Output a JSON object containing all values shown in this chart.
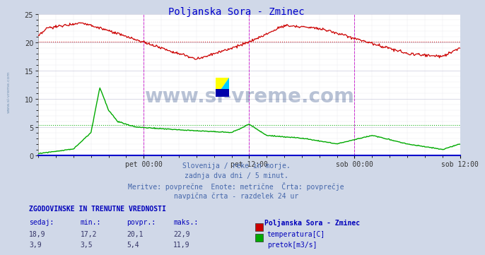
{
  "title": "Poljanska Sora - Zminec",
  "title_color": "#0000cc",
  "bg_color": "#d0d8e8",
  "plot_bg_color": "#ffffff",
  "x_labels": [
    "pet 00:00",
    "pet 12:00",
    "sob 00:00",
    "sob 12:00"
  ],
  "ylim": [
    0,
    25
  ],
  "yticks": [
    0,
    5,
    10,
    15,
    20,
    25
  ],
  "temp_color": "#cc0000",
  "flow_color": "#00aa00",
  "avg_temp": 20.1,
  "avg_flow": 5.4,
  "vline_color": "#cc00cc",
  "subtitle_lines": [
    "Slovenija / reke in morje.",
    "zadnja dva dni / 5 minut.",
    "Meritve: povprečne  Enote: metrične  Črta: povprečje",
    "navpična črta - razdelek 24 ur"
  ],
  "subtitle_color": "#4466aa",
  "table_header": "ZGODOVINSKE IN TRENUTNE VREDNOSTI",
  "table_cols": [
    "sedaj:",
    "min.:",
    "povpr.:",
    "maks.:"
  ],
  "col_color": "#0000bb",
  "temp_row": [
    "18,9",
    "17,2",
    "20,1",
    "22,9"
  ],
  "flow_row": [
    "3,9",
    "3,5",
    "5,4",
    "11,9"
  ],
  "legend_title": "Poljanska Sora - Zminec",
  "legend_temp": "temperatura[C]",
  "legend_flow": "pretok[m3/s]",
  "watermark": "www.si-vreme.com",
  "watermark_color": "#1a3a7a",
  "side_text": "www.si-vreme.com"
}
